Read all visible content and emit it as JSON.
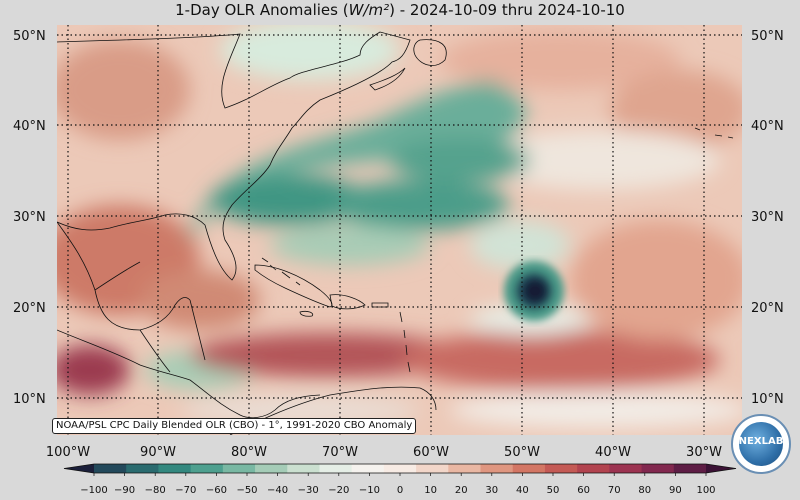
{
  "title": {
    "prefix": "1-Day OLR Anomalies (",
    "unit": "W/m²",
    "suffix": ") - 2024-10-09 thru 2024-10-10"
  },
  "map": {
    "lat_labels": [
      "50°N",
      "40°N",
      "30°N",
      "20°N",
      "10°N"
    ],
    "lon_labels": [
      "100°W",
      "90°W",
      "80°W",
      "70°W",
      "60°W",
      "50°W",
      "40°W",
      "30°W"
    ],
    "features": {
      "storm_center": "dark blue cyclone anomaly near 22°N 51°W",
      "negative_band": "green band across Gulf of Mexico, Florida and western Atlantic",
      "positive_regions": "red/brown anomalies over Gulf and tropical Atlantic"
    }
  },
  "credit": "NOAA/PSL CPC Daily Blended OLR (CBO) - 1°, 1991-2020 CBO Anomaly",
  "logo": {
    "text": "NEXLAB"
  },
  "colorbar": {
    "labels": [
      "−100",
      "−90",
      "−80",
      "−70",
      "−60",
      "−50",
      "−40",
      "−30",
      "−20",
      "−10",
      "0",
      "10",
      "20",
      "30",
      "40",
      "50",
      "60",
      "70",
      "80",
      "90",
      "100"
    ],
    "colors": [
      "#1b1f3a",
      "#23495b",
      "#2a6b6f",
      "#33887f",
      "#4ea08f",
      "#79b8a3",
      "#a5ccb7",
      "#cbe0d0",
      "#e5eee6",
      "#f5f2ee",
      "#f7ebe4",
      "#f2d6c9",
      "#e9b7a3",
      "#df9680",
      "#d37664",
      "#c45a55",
      "#b2434f",
      "#9c3351",
      "#82284f",
      "#5e1d45",
      "#3b1235"
    ]
  }
}
